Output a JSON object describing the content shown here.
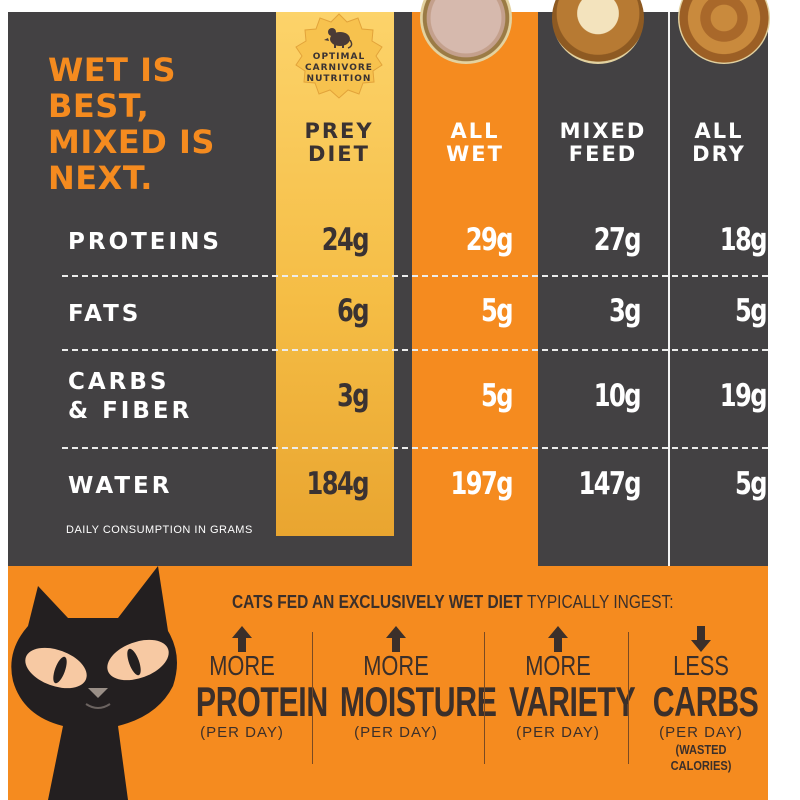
{
  "headline": "WET IS\nBEST,\nMIXED IS\nNEXT.",
  "badge": {
    "text": "OPTIMAL\nCARNIVORE\nNUTRITION",
    "icon": "mouse-icon"
  },
  "columns": [
    {
      "label": "PREY\nDIET",
      "color": "#3a3232"
    },
    {
      "label": "ALL\nWET",
      "color": "#ffffff"
    },
    {
      "label": "MIXED\nFEED",
      "color": "#ffffff"
    },
    {
      "label": "ALL\nDRY",
      "color": "#ffffff"
    }
  ],
  "rows": [
    {
      "label": "PROTEINS",
      "values": [
        "24g",
        "29g",
        "27g",
        "18g"
      ]
    },
    {
      "label": "FATS",
      "values": [
        "6g",
        "5g",
        "3g",
        "5g"
      ]
    },
    {
      "label": "CARBS\n& FIBER",
      "values": [
        "3g",
        "5g",
        "10g",
        "19g"
      ]
    },
    {
      "label": "WATER",
      "values": [
        "184g",
        "197g",
        "147g",
        "5g"
      ]
    }
  ],
  "note": "DAILY CONSUMPTION IN GRAMS",
  "tagline": {
    "bold": "CATS FED AN EXCLUSIVELY WET DIET",
    "light": "TYPICALLY INGEST:"
  },
  "benefits": [
    {
      "direction": "up",
      "top": "MORE",
      "big": "PROTEIN",
      "small": "(PER DAY)",
      "note": ""
    },
    {
      "direction": "up",
      "top": "MORE",
      "big": "MOISTURE",
      "small": "(PER DAY)",
      "note": ""
    },
    {
      "direction": "up",
      "top": "MORE",
      "big": "VARIETY",
      "small": "(PER DAY)",
      "note": ""
    },
    {
      "direction": "down",
      "top": "LESS",
      "big": "CARBS",
      "small": "(PER DAY)",
      "note": "(WASTED CALORIES)"
    }
  ],
  "colors": {
    "orange": "#f58b1f",
    "dark": "#434143",
    "gold": "#f5bd45",
    "brown": "#3b2f2a"
  },
  "illustrations": [
    "wet-food-bowl",
    "mixed-food-bowl",
    "dry-food-bowl",
    "black-cat"
  ]
}
